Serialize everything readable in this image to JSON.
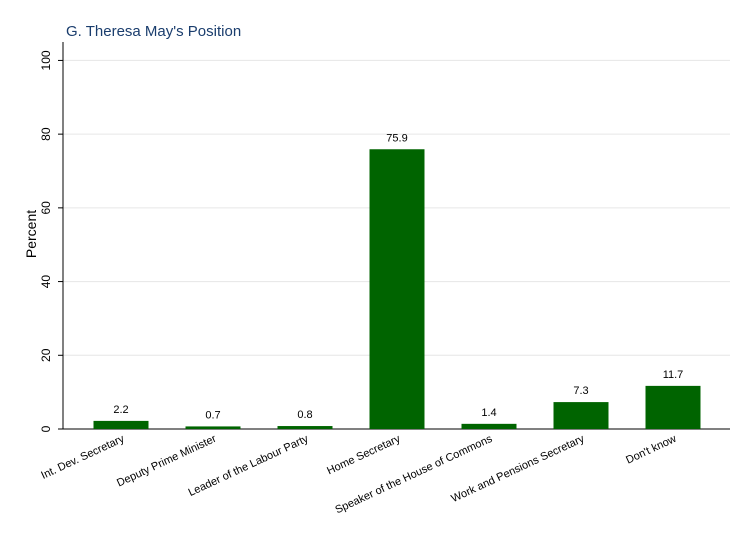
{
  "chart_data": {
    "type": "bar",
    "title": "G. Theresa May's Position",
    "xlabel": "",
    "ylabel": "Percent",
    "ylim": [
      0,
      105
    ],
    "yticks": [
      0,
      20,
      40,
      60,
      80,
      100
    ],
    "grid": true,
    "bar_color": "#006400",
    "categories": [
      "Int. Dev. Secretary",
      "Deputy Prime Minister",
      "Leader of the Labour Party",
      "Home Secretary",
      "Speaker of the House of Commons",
      "Work and Pensions Secretary",
      "Don't know"
    ],
    "values": [
      2.2,
      0.7,
      0.8,
      75.9,
      1.4,
      7.3,
      11.7
    ],
    "data_labels": [
      "2.2",
      "0.7",
      "0.8",
      "75.9",
      "1.4",
      "7.3",
      "11.7"
    ]
  }
}
